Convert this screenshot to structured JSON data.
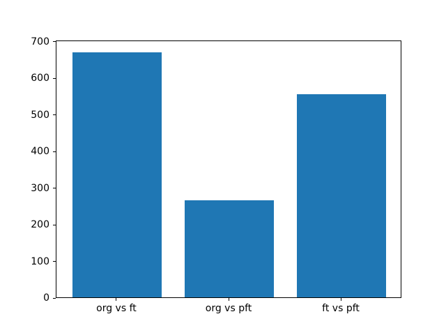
{
  "chart_data": {
    "type": "bar",
    "categories": [
      "org vs ft",
      "org vs pft",
      "ft vs pft"
    ],
    "values": [
      670,
      265,
      554
    ],
    "title": "",
    "xlabel": "",
    "ylabel": "",
    "ylim": [
      0,
      703.5
    ],
    "xlim_units": [
      -0.54,
      2.54
    ],
    "bar_width_units": 0.8,
    "yticks": [
      0,
      100,
      200,
      300,
      400,
      500,
      600,
      700
    ],
    "bar_color": "#1f77b4",
    "spine_color": "#000000",
    "background_color": "#ffffff",
    "grid": false,
    "legend": null
  }
}
